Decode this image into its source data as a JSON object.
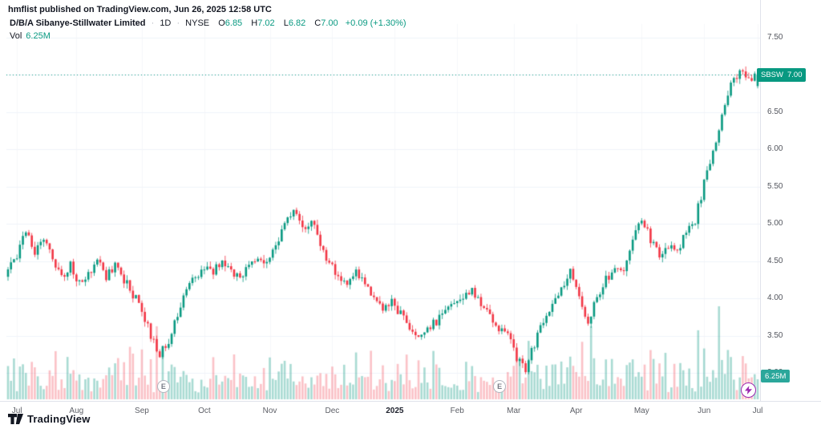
{
  "meta": {
    "publisher_line": "hmflist published on TradingView.com, Jun 26, 2025 12:58 UTC"
  },
  "header": {
    "symbol_title": "D/B/A Sibanye-Stillwater Limited",
    "separator": "·",
    "interval": "1D",
    "exchange": "NYSE",
    "ohlc": {
      "o_label": "O",
      "o": "6.85",
      "h_label": "H",
      "h": "7.02",
      "l_label": "L",
      "l": "6.82",
      "c_label": "C",
      "c": "7.00",
      "change": "+0.09 (+1.30%)"
    },
    "volume_label": "Vol",
    "volume_value": "6.25M"
  },
  "price_scale": {
    "labels": [
      "7.50",
      "7.00",
      "6.50",
      "6.00",
      "5.50",
      "5.00",
      "4.50",
      "4.00",
      "3.50",
      "3.00"
    ]
  },
  "time_scale": {
    "labels": [
      {
        "text": "Jul",
        "day": 3
      },
      {
        "text": "Aug",
        "day": 23
      },
      {
        "text": "Sep",
        "day": 45
      },
      {
        "text": "Oct",
        "day": 66
      },
      {
        "text": "Nov",
        "day": 88
      },
      {
        "text": "Dec",
        "day": 109
      },
      {
        "text": "2025",
        "day": 130,
        "bold": true
      },
      {
        "text": "Feb",
        "day": 151
      },
      {
        "text": "Mar",
        "day": 170
      },
      {
        "text": "Apr",
        "day": 191
      },
      {
        "text": "May",
        "day": 213
      },
      {
        "text": "Jun",
        "day": 234
      },
      {
        "text": "Jul",
        "day": 252
      }
    ]
  },
  "badges": {
    "price_badge": {
      "ticker": "SBSW",
      "price": "7.00"
    },
    "volume_badge": "6.25M"
  },
  "markers": {
    "earnings_label": "E"
  },
  "footer": {
    "logo_text": "TradingView"
  },
  "colors": {
    "up": "#089981",
    "down": "#f23645",
    "vol_up": "rgba(8,153,129,0.35)",
    "vol_down": "rgba(242,54,69,0.30)",
    "grid": "#f0f3fa",
    "grid_vertical": "#f6f7fa",
    "axis_border": "#e0e3eb",
    "text": "#131722",
    "muted": "#787b86",
    "price_badge_bg": "#089981",
    "volume_badge_bg": "#2ba79b",
    "accent_purple": "#9c27b0",
    "last_price_line": "#089981"
  },
  "chart_data": {
    "type": "candlestick",
    "symbol": "SBSW",
    "exchange": "NYSE",
    "interval": "1D",
    "title": "D/B/A Sibanye-Stillwater Limited",
    "ylim": [
      3.0,
      7.5
    ],
    "grid_step": 0.5,
    "legend_position": "top-left",
    "grid": true,
    "last_price": 7.0,
    "last_ohlc": {
      "o": 6.85,
      "h": 7.02,
      "l": 6.82,
      "c": 7.0
    },
    "last_change": 0.09,
    "last_change_pct": 1.3,
    "last_volume_m": 6.25,
    "volume_max_m": 32,
    "days_total": 253,
    "earnings_days": [
      52,
      165
    ],
    "x_axis_months": [
      "Jul",
      "Aug",
      "Sep",
      "Oct",
      "Nov",
      "Dec",
      "2025",
      "Feb",
      "Mar",
      "Apr",
      "May",
      "Jun",
      "Jul"
    ],
    "anchors": {
      "day": [
        0,
        3,
        6,
        9,
        12,
        15,
        18,
        21,
        24,
        27,
        30,
        33,
        36,
        39,
        42,
        45,
        48,
        51,
        54,
        57,
        60,
        63,
        66,
        69,
        72,
        75,
        78,
        81,
        84,
        87,
        90,
        93,
        96,
        99,
        102,
        105,
        108,
        111,
        114,
        117,
        120,
        123,
        126,
        129,
        132,
        135,
        138,
        141,
        144,
        147,
        150,
        153,
        156,
        159,
        162,
        165,
        168,
        171,
        174,
        177,
        180,
        183,
        186,
        189,
        192,
        195,
        198,
        201,
        204,
        207,
        210,
        213,
        216,
        219,
        222,
        225,
        228,
        231,
        234,
        237,
        240,
        243,
        246,
        249,
        252
      ],
      "close": [
        4.35,
        4.6,
        4.95,
        4.65,
        4.8,
        4.55,
        4.3,
        4.45,
        4.2,
        4.35,
        4.5,
        4.3,
        4.45,
        4.25,
        4.05,
        3.85,
        3.5,
        3.25,
        3.45,
        3.8,
        4.1,
        4.3,
        4.45,
        4.35,
        4.5,
        4.4,
        4.25,
        4.45,
        4.55,
        4.5,
        4.7,
        5.0,
        5.2,
        4.9,
        5.05,
        4.7,
        4.5,
        4.3,
        4.2,
        4.35,
        4.15,
        4.0,
        3.9,
        3.95,
        3.8,
        3.6,
        3.45,
        3.55,
        3.7,
        3.8,
        3.9,
        4.0,
        4.1,
        3.95,
        3.8,
        3.6,
        3.5,
        3.2,
        3.05,
        3.4,
        3.7,
        3.9,
        4.15,
        4.4,
        4.05,
        3.7,
        4.0,
        4.25,
        4.4,
        4.35,
        4.85,
        5.05,
        4.8,
        4.55,
        4.7,
        4.6,
        4.9,
        5.05,
        5.55,
        5.95,
        6.45,
        6.85,
        7.05,
        6.9,
        7.0
      ]
    },
    "volume_spikes": [
      {
        "day": 48,
        "v": 14
      },
      {
        "day": 50,
        "v": 20
      },
      {
        "day": 52,
        "v": 16
      },
      {
        "day": 95,
        "v": 12
      },
      {
        "day": 138,
        "v": 11
      },
      {
        "day": 171,
        "v": 13
      },
      {
        "day": 175,
        "v": 17
      },
      {
        "day": 183,
        "v": 12
      },
      {
        "day": 193,
        "v": 19
      },
      {
        "day": 196,
        "v": 21
      },
      {
        "day": 203,
        "v": 14
      },
      {
        "day": 214,
        "v": 12
      },
      {
        "day": 234,
        "v": 15
      },
      {
        "day": 239,
        "v": 30
      },
      {
        "day": 243,
        "v": 12
      },
      {
        "day": 247,
        "v": 13
      }
    ]
  }
}
